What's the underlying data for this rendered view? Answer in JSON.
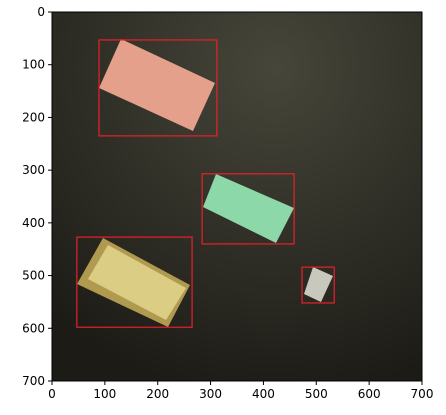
{
  "chart_data": {
    "type": "image",
    "xlim": [
      0,
      700
    ],
    "ylim": [
      700,
      0
    ],
    "xticks": [
      0,
      100,
      200,
      300,
      400,
      500,
      600,
      700
    ],
    "yticks": [
      0,
      100,
      200,
      300,
      400,
      500,
      600,
      700
    ],
    "box_color": "#e8202a",
    "boxes": [
      {
        "x": [
          89,
          312
        ],
        "y": [
          53,
          235
        ]
      },
      {
        "x": [
          284,
          458
        ],
        "y": [
          307,
          440
        ]
      },
      {
        "x": [
          47,
          265
        ],
        "y": [
          427,
          598
        ]
      },
      {
        "x": [
          473,
          534
        ],
        "y": [
          484,
          552
        ]
      }
    ]
  }
}
